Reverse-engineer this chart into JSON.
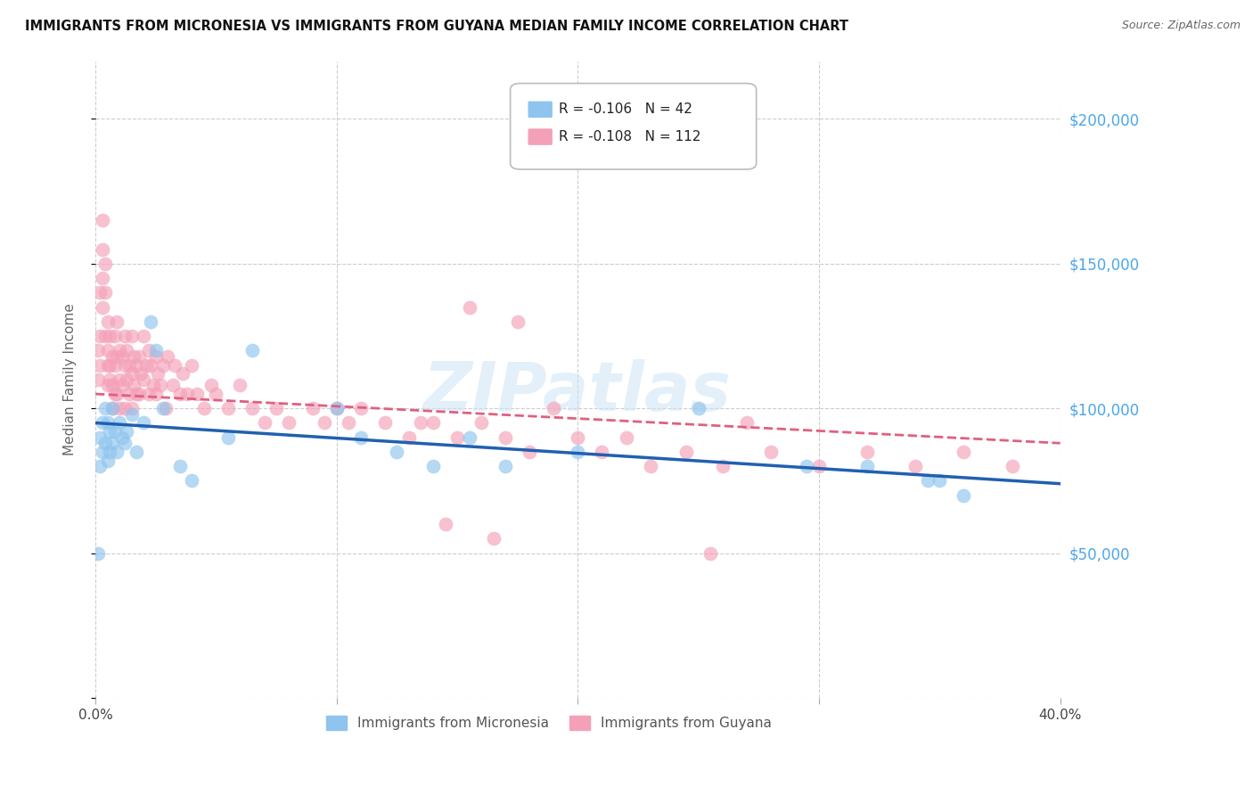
{
  "title": "IMMIGRANTS FROM MICRONESIA VS IMMIGRANTS FROM GUYANA MEDIAN FAMILY INCOME CORRELATION CHART",
  "source": "Source: ZipAtlas.com",
  "ylabel": "Median Family Income",
  "watermark": "ZIPatlas",
  "xlim": [
    0.0,
    0.4
  ],
  "ylim": [
    0,
    220000
  ],
  "xticks": [
    0.0,
    0.1,
    0.2,
    0.3,
    0.4
  ],
  "xtick_labels": [
    "0.0%",
    "",
    "",
    "",
    "40.0%"
  ],
  "ytick_positions": [
    0,
    50000,
    100000,
    150000,
    200000
  ],
  "ytick_labels": [
    "",
    "$50,000",
    "$100,000",
    "$150,000",
    "$200,000"
  ],
  "micronesia_color": "#8ec4ee",
  "micronesia_line_color": "#2060b0",
  "guyana_color": "#f4a0b8",
  "guyana_line_color": "#e06080",
  "micronesia_R": -0.106,
  "micronesia_N": 42,
  "guyana_R": -0.108,
  "guyana_N": 112,
  "micronesia_trend_x0": 0.0,
  "micronesia_trend_x1": 0.4,
  "micronesia_trend_y0": 95000,
  "micronesia_trend_y1": 74000,
  "guyana_trend_x0": 0.0,
  "guyana_trend_x1": 0.4,
  "guyana_trend_y0": 105000,
  "guyana_trend_y1": 88000,
  "micronesia_label": "Immigrants from Micronesia",
  "guyana_label": "Immigrants from Guyana",
  "title_fontsize": 10.5,
  "source_fontsize": 9,
  "ytick_color": "#4da6e8",
  "background_color": "white",
  "grid_color": "#cccccc",
  "micronesia_x": [
    0.001,
    0.002,
    0.002,
    0.003,
    0.003,
    0.004,
    0.004,
    0.005,
    0.005,
    0.006,
    0.006,
    0.007,
    0.007,
    0.008,
    0.009,
    0.01,
    0.011,
    0.012,
    0.013,
    0.015,
    0.017,
    0.02,
    0.023,
    0.025,
    0.028,
    0.035,
    0.04,
    0.055,
    0.065,
    0.1,
    0.11,
    0.125,
    0.14,
    0.155,
    0.17,
    0.2,
    0.25,
    0.295,
    0.32,
    0.345,
    0.35,
    0.36
  ],
  "micronesia_y": [
    50000,
    90000,
    80000,
    95000,
    85000,
    100000,
    88000,
    95000,
    82000,
    92000,
    85000,
    100000,
    88000,
    92000,
    85000,
    95000,
    90000,
    88000,
    92000,
    98000,
    85000,
    95000,
    130000,
    120000,
    100000,
    80000,
    75000,
    90000,
    120000,
    100000,
    90000,
    85000,
    80000,
    90000,
    80000,
    85000,
    100000,
    80000,
    80000,
    75000,
    75000,
    70000
  ],
  "guyana_x": [
    0.001,
    0.001,
    0.002,
    0.002,
    0.002,
    0.003,
    0.003,
    0.003,
    0.003,
    0.004,
    0.004,
    0.004,
    0.005,
    0.005,
    0.005,
    0.005,
    0.006,
    0.006,
    0.006,
    0.007,
    0.007,
    0.007,
    0.008,
    0.008,
    0.008,
    0.009,
    0.009,
    0.009,
    0.01,
    0.01,
    0.01,
    0.011,
    0.011,
    0.012,
    0.012,
    0.012,
    0.013,
    0.013,
    0.014,
    0.014,
    0.015,
    0.015,
    0.015,
    0.016,
    0.016,
    0.017,
    0.017,
    0.018,
    0.018,
    0.019,
    0.02,
    0.02,
    0.021,
    0.022,
    0.022,
    0.023,
    0.024,
    0.025,
    0.025,
    0.026,
    0.027,
    0.028,
    0.029,
    0.03,
    0.032,
    0.033,
    0.035,
    0.036,
    0.038,
    0.04,
    0.042,
    0.045,
    0.048,
    0.05,
    0.055,
    0.06,
    0.065,
    0.07,
    0.075,
    0.08,
    0.09,
    0.095,
    0.1,
    0.105,
    0.11,
    0.12,
    0.13,
    0.14,
    0.15,
    0.16,
    0.17,
    0.18,
    0.2,
    0.21,
    0.22,
    0.23,
    0.245,
    0.26,
    0.28,
    0.3,
    0.32,
    0.34,
    0.36,
    0.38,
    0.155,
    0.19,
    0.255,
    0.175,
    0.165,
    0.27,
    0.145,
    0.135
  ],
  "guyana_y": [
    120000,
    110000,
    140000,
    125000,
    115000,
    165000,
    155000,
    145000,
    135000,
    150000,
    140000,
    125000,
    130000,
    120000,
    115000,
    108000,
    125000,
    115000,
    110000,
    118000,
    108000,
    100000,
    125000,
    115000,
    105000,
    130000,
    118000,
    105000,
    120000,
    110000,
    100000,
    118000,
    108000,
    125000,
    115000,
    100000,
    120000,
    110000,
    115000,
    105000,
    125000,
    112000,
    100000,
    118000,
    108000,
    115000,
    105000,
    118000,
    105000,
    112000,
    125000,
    110000,
    115000,
    120000,
    105000,
    115000,
    108000,
    118000,
    105000,
    112000,
    108000,
    115000,
    100000,
    118000,
    108000,
    115000,
    105000,
    112000,
    105000,
    115000,
    105000,
    100000,
    108000,
    105000,
    100000,
    108000,
    100000,
    95000,
    100000,
    95000,
    100000,
    95000,
    100000,
    95000,
    100000,
    95000,
    90000,
    95000,
    90000,
    95000,
    90000,
    85000,
    90000,
    85000,
    90000,
    80000,
    85000,
    80000,
    85000,
    80000,
    85000,
    80000,
    85000,
    80000,
    135000,
    100000,
    50000,
    130000,
    55000,
    95000,
    60000,
    95000
  ]
}
